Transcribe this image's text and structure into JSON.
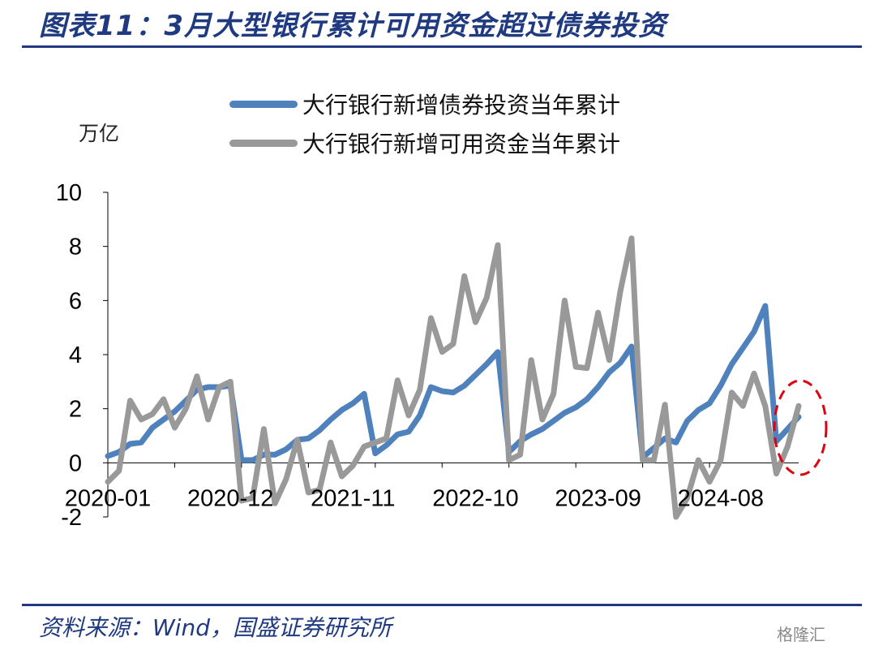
{
  "header": {
    "title": "图表11：3月大型银行累计可用资金超过债券投资"
  },
  "footer": {
    "source": "资料来源：Wind，国盛证券研究所",
    "watermark": "格隆汇"
  },
  "chart_data": {
    "type": "line",
    "unit_label": "万亿",
    "ylim": [
      -2,
      10
    ],
    "y_ticks": [
      -2,
      0,
      2,
      4,
      6,
      8,
      10
    ],
    "x_tick_labels": [
      "2020-01",
      "2020-12",
      "2021-11",
      "2022-10",
      "2023-09",
      "2024-08"
    ],
    "x_tick_indices": [
      0,
      11,
      22,
      33,
      44,
      55
    ],
    "legend_position": "top",
    "grid": false,
    "highlight": {
      "shape": "dashed-ellipse",
      "color": "#E0000E",
      "target": "latest points (2025-01 to 2025-03)"
    },
    "series": [
      {
        "name": "大行银行新增债券投资当年累计",
        "color": "#4F81BD",
        "values": [
          0.25,
          0.4,
          0.7,
          0.75,
          1.3,
          1.6,
          1.9,
          2.3,
          2.7,
          2.8,
          2.8,
          2.85,
          0.1,
          0.1,
          0.3,
          0.3,
          0.5,
          0.85,
          0.9,
          1.2,
          1.6,
          1.95,
          2.2,
          2.55,
          0.35,
          0.65,
          1.05,
          1.15,
          1.75,
          2.8,
          2.65,
          2.6,
          2.85,
          3.25,
          3.65,
          4.1,
          0.4,
          0.8,
          1.05,
          1.25,
          1.55,
          1.85,
          2.05,
          2.35,
          2.8,
          3.35,
          3.7,
          4.3,
          0.2,
          0.55,
          0.9,
          0.75,
          1.55,
          1.95,
          2.2,
          2.85,
          3.65,
          4.25,
          4.85,
          5.8,
          0.8,
          1.25,
          1.7
        ]
      },
      {
        "name": "大行银行新增可用资金当年累计",
        "color": "#999999",
        "values": [
          -0.7,
          -0.3,
          2.3,
          1.6,
          1.8,
          2.35,
          1.3,
          2.0,
          3.2,
          1.6,
          2.8,
          3.0,
          -1.4,
          -1.3,
          1.25,
          -1.5,
          -0.6,
          0.85,
          -1.1,
          -1.0,
          0.75,
          -0.5,
          -0.1,
          0.6,
          0.75,
          0.9,
          3.05,
          1.75,
          2.7,
          5.35,
          4.1,
          4.4,
          6.9,
          5.2,
          6.1,
          8.05,
          0.1,
          0.3,
          3.8,
          1.6,
          2.55,
          6.0,
          3.55,
          3.5,
          5.55,
          3.8,
          6.35,
          8.3,
          0.1,
          0.1,
          2.15,
          -2.0,
          -1.3,
          0.1,
          -0.7,
          0.1,
          2.6,
          2.1,
          3.3,
          2.1,
          -0.4,
          0.6,
          2.1
        ]
      }
    ]
  }
}
